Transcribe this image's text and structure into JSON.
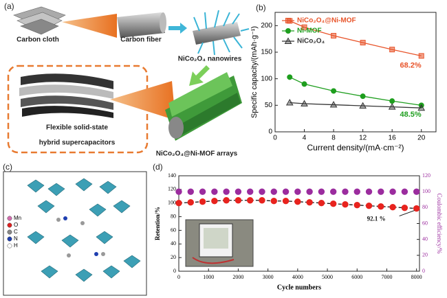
{
  "panels": {
    "a": "(a)",
    "b": "(b)",
    "c": "(c)",
    "d": "(d)"
  },
  "schematic": {
    "cloth": "Carbon cloth",
    "fiber": "Carbon fiber",
    "nanowires": "NiCo₂O₄ nanowires",
    "device_line1": "Flexible solid-state",
    "device_line2": "hybrid supercapacitors",
    "arrays": "NiCo₂O₄@Ni-MOF arrays"
  },
  "structure": {
    "legend": [
      "Mn",
      "O",
      "C",
      "N",
      "H"
    ]
  },
  "chart_data": [
    {
      "type": "line",
      "xlabel": "Current density/(mA·cm⁻²)",
      "ylabel": "Specific capacity/(mAh·g⁻¹)",
      "x": [
        2,
        4,
        8,
        12,
        16,
        20
      ],
      "xlim": [
        0,
        22
      ],
      "xticks": [
        0,
        4,
        8,
        12,
        16,
        20
      ],
      "ylim": [
        0,
        225
      ],
      "yticks": [
        0,
        50,
        100,
        150,
        200
      ],
      "legend": "upper left",
      "series": [
        {
          "name": "NiCo₂O₄@Ni-MOF",
          "color": "#e8542a",
          "marker": "square",
          "line": "solid",
          "values": [
            209,
            197,
            181,
            168,
            155,
            143
          ],
          "end_label": "68.2%"
        },
        {
          "name": "Ni-MOF",
          "color": "#1e9e1e",
          "marker": "circle",
          "line": "solid",
          "values": [
            103,
            90,
            77,
            67,
            58,
            50
          ],
          "end_label": "48.5%"
        },
        {
          "name": "NiCo₂O₄",
          "color": "#333333",
          "marker": "triangle",
          "line": "solid",
          "values": [
            55,
            53,
            51,
            49,
            47,
            45
          ]
        }
      ]
    },
    {
      "type": "line",
      "xlabel": "Cycle numbers",
      "ylabel": "Retention/%",
      "y2label": "Coulombic efficiency/%",
      "x": [
        0,
        400,
        800,
        1200,
        1600,
        2000,
        2400,
        2800,
        3200,
        3600,
        4000,
        4400,
        4800,
        5200,
        5600,
        6000,
        6400,
        6800,
        7200,
        7600,
        8000
      ],
      "xlim": [
        0,
        8100
      ],
      "xticks": [
        0,
        1000,
        2000,
        3000,
        4000,
        5000,
        6000,
        7000,
        8000
      ],
      "ylim": [
        0,
        140
      ],
      "yticks": [
        0,
        20,
        40,
        60,
        80,
        100,
        120,
        140
      ],
      "y2lim": [
        0,
        120
      ],
      "y2ticks": [
        0,
        20,
        40,
        60,
        80,
        100,
        120
      ],
      "series": [
        {
          "name": "Retention",
          "color": "#e8231e",
          "line_color": "#111111",
          "marker": "circle",
          "line": "dashed",
          "values": [
            100,
            101,
            102,
            103,
            104,
            104,
            104,
            104,
            103,
            103,
            102,
            101,
            100,
            99,
            98,
            97,
            96,
            95,
            94,
            93,
            92.1
          ],
          "end_label": "92.1 %"
        },
        {
          "name": "Coulombic efficiency",
          "color": "#9b2c9e",
          "marker": "circle",
          "line": "none",
          "axis": "y2",
          "values": [
            100,
            100,
            100,
            100,
            100,
            100,
            100,
            100,
            100,
            100,
            100,
            100,
            100,
            100,
            100,
            100,
            100,
            100,
            100,
            100,
            100
          ]
        }
      ]
    }
  ]
}
